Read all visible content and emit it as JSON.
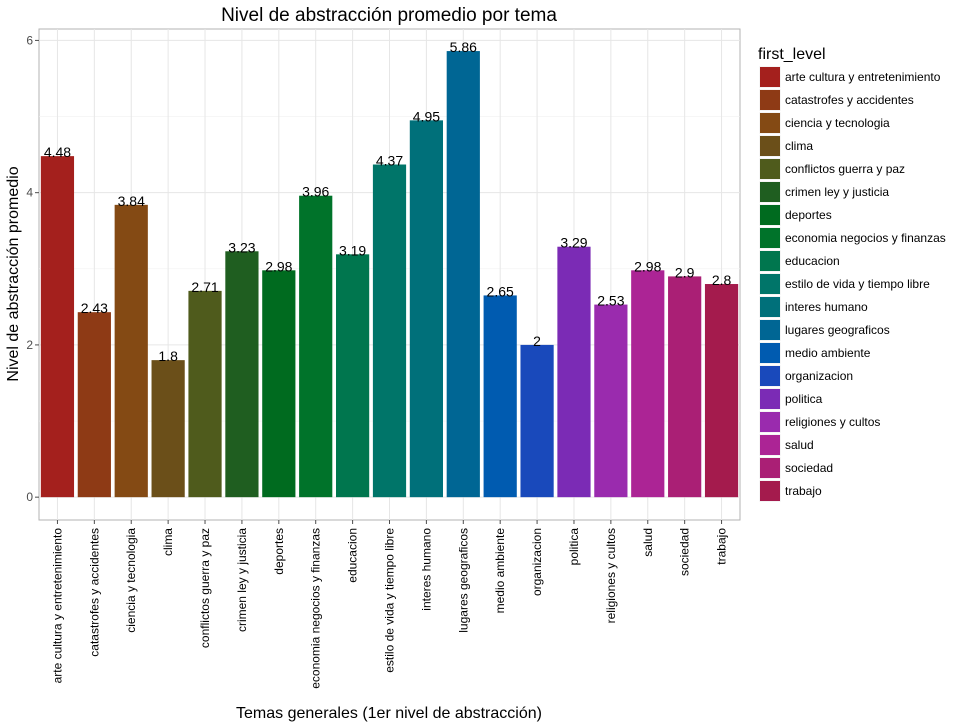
{
  "chart_data": {
    "type": "bar",
    "title": "Nivel de abstracción promedio por tema",
    "xlabel": "Temas generales (1er nivel de abstracción)",
    "ylabel": "Nivel de abstracción promedio",
    "ylim": [
      -0.3,
      6.15
    ],
    "yticks": [
      0,
      2,
      4,
      6
    ],
    "grid": true,
    "legend": {
      "title": "first_level",
      "position": "right"
    },
    "categories": [
      "arte cultura y entretenimiento",
      "catastrofes y accidentes",
      "ciencia y tecnologia",
      "clima",
      "conflictos guerra y paz",
      "crimen ley y justicia",
      "deportes",
      "economia negocios y finanzas",
      "educacion",
      "estilo de vida y tiempo libre",
      "interes humano",
      "lugares geograficos",
      "medio ambiente",
      "organizacion",
      "politica",
      "religiones y cultos",
      "salud",
      "sociedad",
      "trabajo"
    ],
    "values": [
      4.48,
      2.43,
      3.84,
      1.8,
      2.71,
      3.23,
      2.98,
      3.96,
      3.19,
      4.37,
      4.95,
      5.86,
      2.65,
      2,
      3.29,
      2.53,
      2.98,
      2.9,
      2.8
    ],
    "value_labels": [
      "4.48",
      "2.43",
      "3.84",
      "1.8",
      "2.71",
      "3.23",
      "2.98",
      "3.96",
      "3.19",
      "4.37",
      "4.95",
      "5.86",
      "2.65",
      "2",
      "3.29",
      "2.53",
      "2.98",
      "2.9",
      "2.8"
    ],
    "colors": [
      "#A4201D",
      "#8E3A15",
      "#844A14",
      "#6B4F19",
      "#4F5B1C",
      "#1F5E20",
      "#006B1F",
      "#00732A",
      "#00764E",
      "#007569",
      "#00707A",
      "#006694",
      "#005BB0",
      "#1949BB",
      "#7B2BB5",
      "#9A2BAE",
      "#AC2495",
      "#AA1F75",
      "#A41B4D"
    ]
  }
}
